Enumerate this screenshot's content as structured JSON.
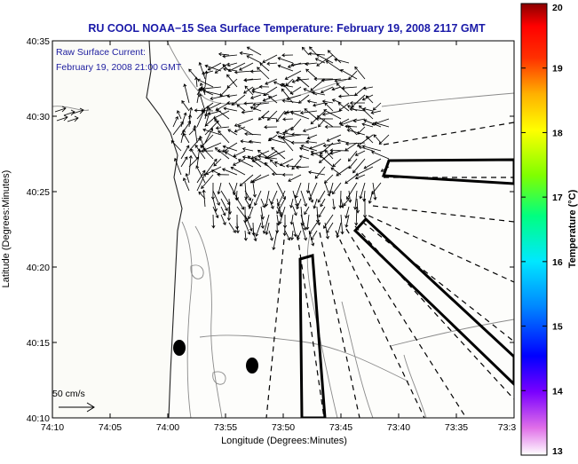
{
  "chart_data": {
    "type": "map",
    "title": "RU COOL  NOAA−15  Sea Surface Temperature:  February 19, 2008 2117 GMT",
    "subtitle": [
      "Raw Surface Current:",
      "February 19, 2008 21:00 GMT"
    ],
    "xlabel": "Longitude (Degrees:Minutes)",
    "ylabel": "Latitude (Degrees:Minutes)",
    "xlim_minutes_west": [
      10,
      30
    ],
    "ylim_minutes_north": [
      10,
      35
    ],
    "x_ticks": [
      "74:10",
      "74:05",
      "74:00",
      "73:55",
      "73:50",
      "73:45",
      "73:40",
      "73:35",
      "73:3"
    ],
    "y_ticks": [
      "40:35",
      "40:30",
      "40:25",
      "40:20",
      "40:15",
      "40:10"
    ],
    "colorbar": {
      "label": "Temperature (°C)",
      "range": [
        13,
        20
      ],
      "ticks": [
        "20",
        "19",
        "18",
        "17",
        "16",
        "15",
        "14",
        "13"
      ]
    },
    "scale_label": "50 cm/s"
  }
}
